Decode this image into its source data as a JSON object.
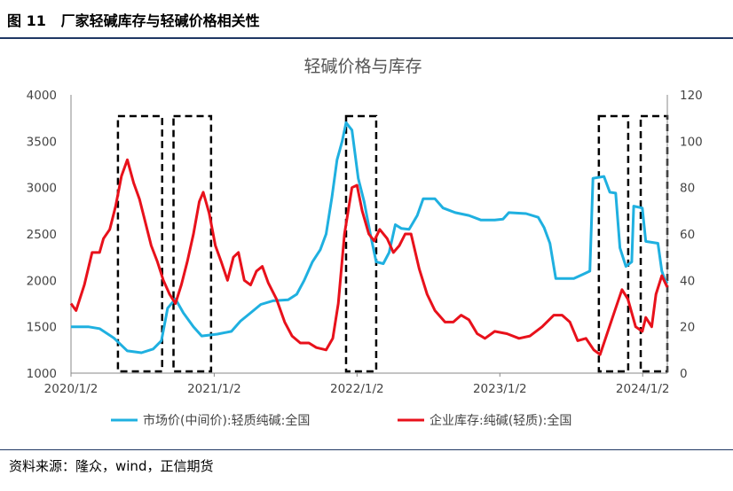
{
  "figure": {
    "label": "图 11",
    "title": "厂家轻碱库存与轻碱价格相关性",
    "source": "资料来源：隆众，wind，正信期货"
  },
  "chart_data": {
    "type": "line",
    "title": "轻碱价格与库存",
    "y_left": {
      "min": 1000,
      "max": 4000,
      "ticks": [
        1000,
        1500,
        2000,
        2500,
        3000,
        3500,
        4000
      ]
    },
    "y_right": {
      "min": 0,
      "max": 120,
      "ticks": [
        0,
        20,
        40,
        60,
        80,
        100,
        120
      ]
    },
    "x_range": [
      "2020-01-02",
      "2024-03-05"
    ],
    "x_ticks": [
      {
        "label": "2020/1/2",
        "date": "2020-01-02"
      },
      {
        "label": "2021/1/2",
        "date": "2021-01-02"
      },
      {
        "label": "2022/1/2",
        "date": "2022-01-02"
      },
      {
        "label": "2023/1/2",
        "date": "2023-01-02"
      },
      {
        "label": "2024/1/2",
        "date": "2024-01-02"
      }
    ],
    "grid": false,
    "legend_position": "bottom",
    "series": [
      {
        "name": "市场价(中间价):轻质纯碱:全国",
        "axis": "left",
        "color": "#1fb0e0",
        "points": [
          [
            "2020-01-02",
            1500
          ],
          [
            "2020-02-15",
            1500
          ],
          [
            "2020-03-15",
            1480
          ],
          [
            "2020-04-20",
            1380
          ],
          [
            "2020-05-25",
            1240
          ],
          [
            "2020-06-30",
            1220
          ],
          [
            "2020-07-30",
            1260
          ],
          [
            "2020-08-20",
            1350
          ],
          [
            "2020-09-05",
            1700
          ],
          [
            "2020-09-25",
            1800
          ],
          [
            "2020-10-15",
            1650
          ],
          [
            "2020-11-10",
            1500
          ],
          [
            "2020-12-01",
            1400
          ],
          [
            "2021-01-10",
            1420
          ],
          [
            "2021-02-15",
            1450
          ],
          [
            "2021-03-10",
            1560
          ],
          [
            "2021-04-05",
            1650
          ],
          [
            "2021-05-01",
            1740
          ],
          [
            "2021-06-01",
            1780
          ],
          [
            "2021-07-10",
            1790
          ],
          [
            "2021-08-01",
            1850
          ],
          [
            "2021-08-20",
            2000
          ],
          [
            "2021-09-10",
            2200
          ],
          [
            "2021-09-30",
            2330
          ],
          [
            "2021-10-15",
            2500
          ],
          [
            "2021-10-30",
            2900
          ],
          [
            "2021-11-12",
            3300
          ],
          [
            "2021-11-25",
            3500
          ],
          [
            "2021-12-05",
            3700
          ],
          [
            "2021-12-20",
            3620
          ],
          [
            "2022-01-05",
            3100
          ],
          [
            "2022-01-20",
            2850
          ],
          [
            "2022-02-05",
            2500
          ],
          [
            "2022-02-20",
            2200
          ],
          [
            "2022-03-10",
            2180
          ],
          [
            "2022-03-25",
            2300
          ],
          [
            "2022-04-10",
            2600
          ],
          [
            "2022-04-25",
            2560
          ],
          [
            "2022-05-15",
            2550
          ],
          [
            "2022-06-05",
            2700
          ],
          [
            "2022-06-20",
            2880
          ],
          [
            "2022-07-20",
            2880
          ],
          [
            "2022-08-10",
            2780
          ],
          [
            "2022-09-10",
            2730
          ],
          [
            "2022-10-15",
            2700
          ],
          [
            "2022-11-15",
            2650
          ],
          [
            "2022-12-20",
            2650
          ],
          [
            "2023-01-10",
            2660
          ],
          [
            "2023-01-25",
            2730
          ],
          [
            "2023-03-10",
            2720
          ],
          [
            "2023-04-10",
            2680
          ],
          [
            "2023-04-25",
            2570
          ],
          [
            "2023-05-10",
            2400
          ],
          [
            "2023-05-25",
            2020
          ],
          [
            "2023-07-10",
            2020
          ],
          [
            "2023-08-05",
            2070
          ],
          [
            "2023-08-20",
            2100
          ],
          [
            "2023-08-28",
            3100
          ],
          [
            "2023-09-25",
            3120
          ],
          [
            "2023-10-10",
            2950
          ],
          [
            "2023-10-25",
            2940
          ],
          [
            "2023-11-05",
            2350
          ],
          [
            "2023-11-20",
            2150
          ],
          [
            "2023-12-05",
            2200
          ],
          [
            "2023-12-10",
            2800
          ],
          [
            "2024-01-01",
            2780
          ],
          [
            "2024-01-10",
            2420
          ],
          [
            "2024-02-10",
            2400
          ],
          [
            "2024-02-20",
            2100
          ],
          [
            "2024-02-28",
            2000
          ],
          [
            "2024-03-05",
            1970
          ]
        ]
      },
      {
        "name": "企业库存:纯碱(轻质):全国",
        "axis": "right",
        "color": "#e8111b",
        "points": [
          [
            "2020-01-02",
            30
          ],
          [
            "2020-01-15",
            27
          ],
          [
            "2020-02-05",
            38
          ],
          [
            "2020-02-25",
            52
          ],
          [
            "2020-03-15",
            52
          ],
          [
            "2020-03-25",
            58
          ],
          [
            "2020-04-10",
            62
          ],
          [
            "2020-04-25",
            72
          ],
          [
            "2020-05-10",
            85
          ],
          [
            "2020-05-25",
            92
          ],
          [
            "2020-06-10",
            82
          ],
          [
            "2020-06-25",
            75
          ],
          [
            "2020-07-10",
            65
          ],
          [
            "2020-07-25",
            55
          ],
          [
            "2020-08-10",
            48
          ],
          [
            "2020-08-25",
            40
          ],
          [
            "2020-09-10",
            34
          ],
          [
            "2020-09-25",
            30
          ],
          [
            "2020-10-10",
            38
          ],
          [
            "2020-10-25",
            48
          ],
          [
            "2020-11-10",
            60
          ],
          [
            "2020-11-25",
            74
          ],
          [
            "2020-12-05",
            78
          ],
          [
            "2020-12-20",
            69
          ],
          [
            "2021-01-05",
            55
          ],
          [
            "2021-01-20",
            48
          ],
          [
            "2021-02-05",
            40
          ],
          [
            "2021-02-20",
            50
          ],
          [
            "2021-03-05",
            52
          ],
          [
            "2021-03-20",
            40
          ],
          [
            "2021-04-05",
            38
          ],
          [
            "2021-04-20",
            44
          ],
          [
            "2021-05-05",
            46
          ],
          [
            "2021-05-20",
            39
          ],
          [
            "2021-06-10",
            32
          ],
          [
            "2021-07-01",
            22
          ],
          [
            "2021-07-20",
            16
          ],
          [
            "2021-08-10",
            13
          ],
          [
            "2021-09-01",
            13
          ],
          [
            "2021-09-20",
            11
          ],
          [
            "2021-10-15",
            10
          ],
          [
            "2021-11-01",
            15
          ],
          [
            "2021-11-15",
            30
          ],
          [
            "2021-12-01",
            60
          ],
          [
            "2021-12-20",
            80
          ],
          [
            "2022-01-02",
            81
          ],
          [
            "2022-01-15",
            70
          ],
          [
            "2022-02-01",
            60
          ],
          [
            "2022-02-15",
            57
          ],
          [
            "2022-03-01",
            62
          ],
          [
            "2022-03-20",
            58
          ],
          [
            "2022-04-05",
            52
          ],
          [
            "2022-04-20",
            55
          ],
          [
            "2022-05-05",
            60
          ],
          [
            "2022-05-20",
            60
          ],
          [
            "2022-06-10",
            45
          ],
          [
            "2022-06-30",
            34
          ],
          [
            "2022-07-20",
            27
          ],
          [
            "2022-08-15",
            22
          ],
          [
            "2022-09-05",
            22
          ],
          [
            "2022-09-25",
            25
          ],
          [
            "2022-10-15",
            23
          ],
          [
            "2022-11-05",
            17
          ],
          [
            "2022-11-25",
            15
          ],
          [
            "2022-12-20",
            18
          ],
          [
            "2023-01-20",
            17
          ],
          [
            "2023-02-20",
            15
          ],
          [
            "2023-03-20",
            16
          ],
          [
            "2023-04-20",
            20
          ],
          [
            "2023-05-20",
            25
          ],
          [
            "2023-06-10",
            25
          ],
          [
            "2023-06-30",
            22
          ],
          [
            "2023-07-20",
            14
          ],
          [
            "2023-08-10",
            15
          ],
          [
            "2023-08-30",
            10
          ],
          [
            "2023-09-15",
            8
          ],
          [
            "2023-10-05",
            18
          ],
          [
            "2023-10-25",
            28
          ],
          [
            "2023-11-10",
            36
          ],
          [
            "2023-11-25",
            32
          ],
          [
            "2023-12-15",
            20
          ],
          [
            "2024-01-01",
            18
          ],
          [
            "2024-01-10",
            24
          ],
          [
            "2024-01-25",
            20
          ],
          [
            "2024-02-05",
            34
          ],
          [
            "2024-02-20",
            42
          ],
          [
            "2024-03-05",
            37
          ]
        ]
      }
    ],
    "shaded_periods": [
      [
        "2020-05-01",
        "2020-08-22"
      ],
      [
        "2020-09-20",
        "2020-12-25"
      ],
      [
        "2021-12-05",
        "2022-02-20"
      ],
      [
        "2023-09-12",
        "2023-11-26"
      ],
      [
        "2023-12-28",
        "2024-03-05"
      ]
    ]
  }
}
